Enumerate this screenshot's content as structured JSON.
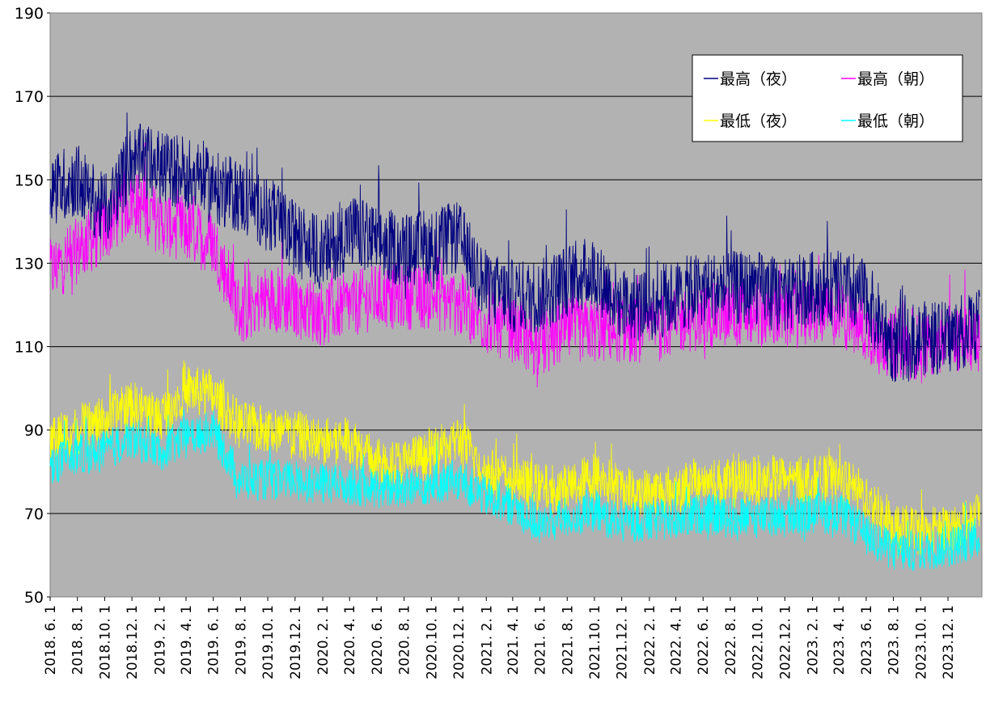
{
  "chart_data": {
    "type": "line",
    "title": "",
    "xlabel": "",
    "ylabel": "",
    "ylim": [
      50,
      190
    ],
    "yticks": [
      50,
      70,
      90,
      110,
      130,
      150,
      170,
      190
    ],
    "xrange": [
      "2018-06-01",
      "2024-02-15"
    ],
    "xtick_labels": [
      "2018. 6. 1",
      "2018. 8. 1",
      "2018.10. 1",
      "2018.12. 1",
      "2019. 2. 1",
      "2019. 4. 1",
      "2019. 6. 1",
      "2019. 8. 1",
      "2019.10. 1",
      "2019.12. 1",
      "2020. 2. 1",
      "2020. 4. 1",
      "2020. 6. 1",
      "2020. 8. 1",
      "2020.10. 1",
      "2020.12. 1",
      "2021. 2. 1",
      "2021. 4. 1",
      "2021. 6. 1",
      "2021. 8. 1",
      "2021.10. 1",
      "2021.12. 1",
      "2022. 2. 1",
      "2022. 4. 1",
      "2022. 6. 1",
      "2022. 8. 1",
      "2022.10. 1",
      "2022.12. 1",
      "2023. 2. 1",
      "2023. 4. 1",
      "2023. 6. 1",
      "2023. 8. 1",
      "2023.10. 1",
      "2023.12. 1"
    ],
    "grid": "horizontal",
    "legend_position": "top-right",
    "background": "#b2b2b2",
    "series": [
      {
        "name": "最高（夜）",
        "color": "#000080",
        "x": [
          "2018-06-01",
          "2018-08-01",
          "2018-10-01",
          "2018-12-01",
          "2019-02-01",
          "2019-04-01",
          "2019-06-01",
          "2019-08-01",
          "2019-10-01",
          "2019-12-01",
          "2020-02-01",
          "2020-04-01",
          "2020-06-01",
          "2020-08-01",
          "2020-10-01",
          "2020-12-01",
          "2021-02-01",
          "2021-04-01",
          "2021-06-01",
          "2021-08-01",
          "2021-10-01",
          "2021-12-01",
          "2022-02-01",
          "2022-04-01",
          "2022-06-01",
          "2022-08-01",
          "2022-10-01",
          "2022-12-01",
          "2023-02-01",
          "2023-04-01",
          "2023-06-01",
          "2023-08-01",
          "2023-10-01",
          "2023-12-01",
          "2024-02-01"
        ],
        "values": [
          148,
          150,
          142,
          155,
          153,
          152,
          148,
          146,
          142,
          136,
          132,
          138,
          135,
          133,
          134,
          136,
          124,
          122,
          122,
          126,
          128,
          120,
          120,
          122,
          124,
          124,
          124,
          122,
          124,
          124,
          122,
          110,
          112,
          112,
          115
        ]
      },
      {
        "name": "最高（朝）",
        "color": "#ff00ff",
        "x": [
          "2018-06-01",
          "2018-08-01",
          "2018-10-01",
          "2018-12-01",
          "2019-02-01",
          "2019-04-01",
          "2019-06-01",
          "2019-08-01",
          "2019-10-01",
          "2019-12-01",
          "2020-02-01",
          "2020-04-01",
          "2020-06-01",
          "2020-08-01",
          "2020-10-01",
          "2020-12-01",
          "2021-02-01",
          "2021-04-01",
          "2021-06-01",
          "2021-08-01",
          "2021-10-01",
          "2021-12-01",
          "2022-02-01",
          "2022-04-01",
          "2022-06-01",
          "2022-08-01",
          "2022-10-01",
          "2022-12-01",
          "2023-02-01",
          "2023-04-01",
          "2023-06-01",
          "2023-08-01",
          "2023-10-01",
          "2023-12-01",
          "2024-02-01"
        ],
        "values": [
          128,
          133,
          138,
          145,
          140,
          138,
          135,
          118,
          122,
          120,
          118,
          120,
          122,
          122,
          122,
          120,
          116,
          114,
          110,
          114,
          114,
          114,
          114,
          116,
          117,
          118,
          118,
          117,
          118,
          118,
          114,
          110,
          110,
          112,
          112
        ]
      },
      {
        "name": "最低（夜）",
        "color": "#ffff00",
        "x": [
          "2018-06-01",
          "2018-08-01",
          "2018-10-01",
          "2018-12-01",
          "2019-02-01",
          "2019-04-01",
          "2019-06-01",
          "2019-08-01",
          "2019-10-01",
          "2019-12-01",
          "2020-02-01",
          "2020-04-01",
          "2020-06-01",
          "2020-08-01",
          "2020-10-01",
          "2020-12-01",
          "2021-02-01",
          "2021-04-01",
          "2021-06-01",
          "2021-08-01",
          "2021-10-01",
          "2021-12-01",
          "2022-02-01",
          "2022-04-01",
          "2022-06-01",
          "2022-08-01",
          "2022-10-01",
          "2022-12-01",
          "2023-02-01",
          "2023-04-01",
          "2023-06-01",
          "2023-08-01",
          "2023-10-01",
          "2023-12-01",
          "2024-02-01"
        ],
        "values": [
          88,
          90,
          92,
          96,
          93,
          100,
          98,
          91,
          90,
          89,
          87,
          88,
          82,
          82,
          84,
          88,
          80,
          78,
          76,
          76,
          79,
          76,
          75,
          76,
          78,
          77,
          78,
          78,
          78,
          78,
          74,
          66,
          66,
          66,
          70
        ]
      },
      {
        "name": "最低（朝）",
        "color": "#00ffff",
        "x": [
          "2018-06-01",
          "2018-08-01",
          "2018-10-01",
          "2018-12-01",
          "2019-02-01",
          "2019-04-01",
          "2019-06-01",
          "2019-08-01",
          "2019-10-01",
          "2019-12-01",
          "2020-02-01",
          "2020-04-01",
          "2020-06-01",
          "2020-08-01",
          "2020-10-01",
          "2020-12-01",
          "2021-02-01",
          "2021-04-01",
          "2021-06-01",
          "2021-08-01",
          "2021-10-01",
          "2021-12-01",
          "2022-02-01",
          "2022-04-01",
          "2022-06-01",
          "2022-08-01",
          "2022-10-01",
          "2022-12-01",
          "2023-02-01",
          "2023-04-01",
          "2023-06-01",
          "2023-08-01",
          "2023-10-01",
          "2023-12-01",
          "2024-02-01"
        ],
        "values": [
          82,
          84,
          85,
          88,
          85,
          88,
          90,
          78,
          78,
          78,
          77,
          77,
          76,
          76,
          77,
          78,
          74,
          72,
          67,
          69,
          70,
          68,
          68,
          69,
          70,
          69,
          69,
          69,
          70,
          70,
          65,
          61,
          61,
          62,
          64
        ]
      }
    ]
  }
}
